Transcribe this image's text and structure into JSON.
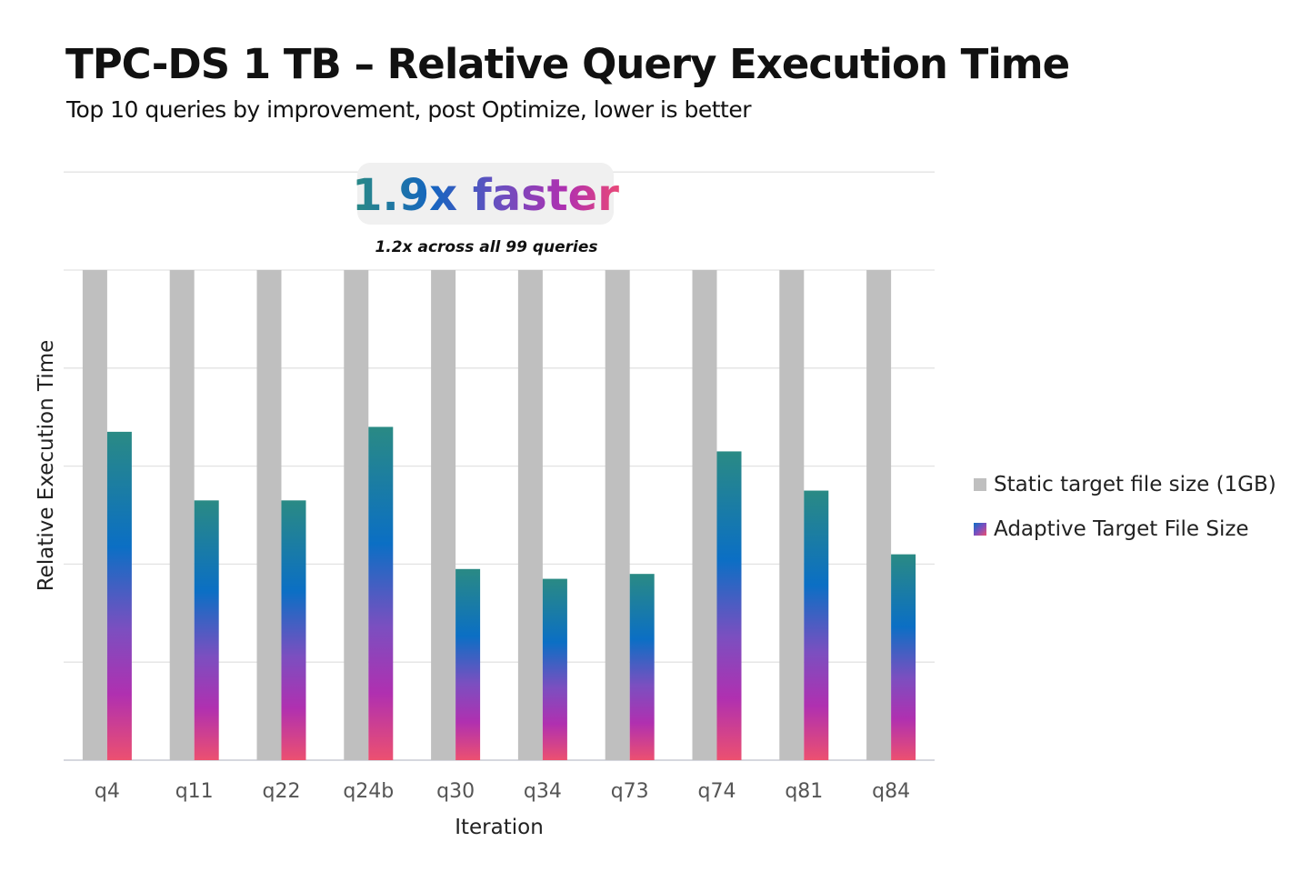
{
  "chart_data": {
    "type": "bar",
    "title": "TPC-DS 1 TB – Relative Query Execution Time",
    "subtitle": "Top 10 queries by improvement, post Optimize, lower is better",
    "xlabel": "Iteration",
    "ylabel": "Relative Execution Time",
    "ylim": [
      0,
      1.2
    ],
    "grid": true,
    "y_tick_labels_shown": false,
    "legend_placement": "right",
    "categories": [
      "q4",
      "q11",
      "q22",
      "q24b",
      "q30",
      "q34",
      "q73",
      "q74",
      "q81",
      "q84"
    ],
    "series": [
      {
        "name": "Static target file size (1GB)",
        "color": "#bfbfbf",
        "values": [
          1,
          1,
          1,
          1,
          1,
          1,
          1,
          1,
          1,
          1
        ]
      },
      {
        "name": "Adaptive Target File Size",
        "gradient": [
          "#2a8a84",
          "#0b6fc4",
          "#7b4fc0",
          "#b030b0",
          "#ec5070"
        ],
        "values": [
          0.67,
          0.53,
          0.53,
          0.68,
          0.39,
          0.37,
          0.38,
          0.63,
          0.55,
          0.42
        ]
      }
    ],
    "annotation": {
      "headline": "1.9x faster",
      "note": "1.2x across all 99 queries"
    }
  }
}
